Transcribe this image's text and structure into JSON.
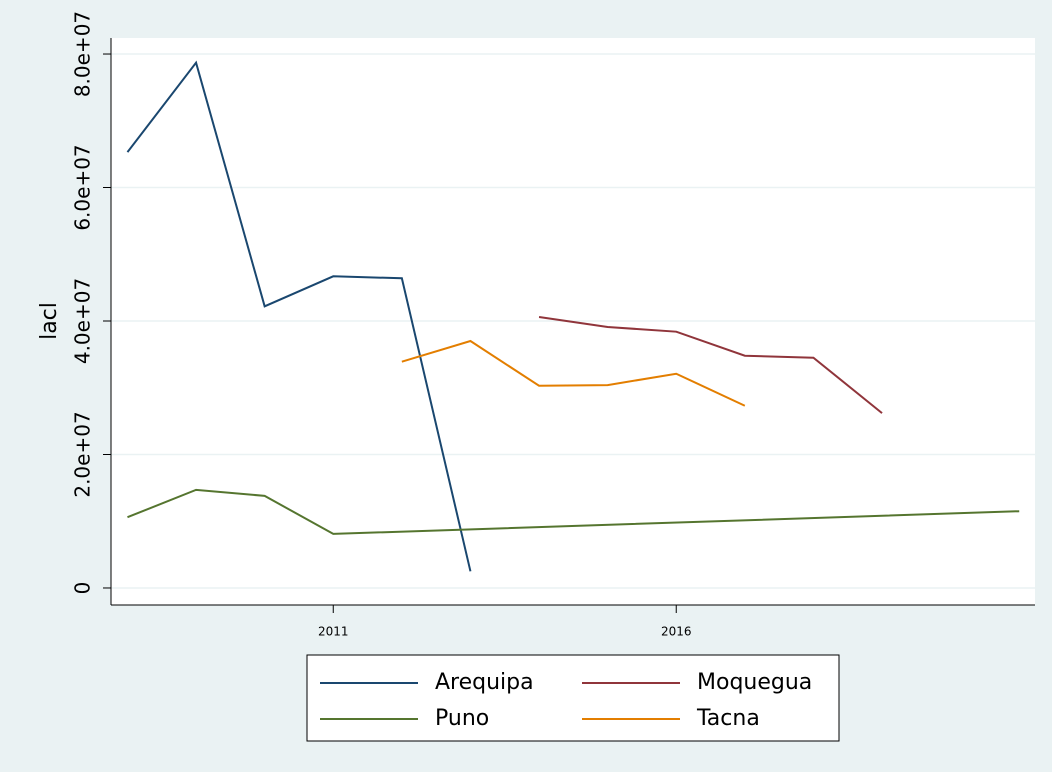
{
  "chart_data": {
    "type": "line",
    "y_label": "lacl",
    "xlim": [
      2007.76,
      2021.23
    ],
    "xticks": [
      2011,
      2016
    ],
    "ylim": [
      -2550000,
      82400000
    ],
    "yticks": [
      {
        "value": 0,
        "label": "0"
      },
      {
        "value": 20000000,
        "label": "2.0e+07"
      },
      {
        "value": 40000000,
        "label": "4.0e+07"
      },
      {
        "value": 60000000,
        "label": "6.0e+07"
      },
      {
        "value": 80000000,
        "label": "8.0e+07"
      }
    ],
    "grid": true,
    "series": [
      {
        "name": "Arequipa",
        "color": "#1a476f",
        "x": [
          2008,
          2009,
          2010,
          2011,
          2012,
          2013
        ],
        "values": [
          65300000,
          78700000,
          42200000,
          46700000,
          46400000,
          2500000
        ]
      },
      {
        "name": "Moquegua",
        "color": "#90353b",
        "x": [
          2014,
          2015,
          2016,
          2017,
          2018,
          2019
        ],
        "values": [
          40600000,
          39100000,
          38400000,
          34800000,
          34500000,
          26200000
        ]
      },
      {
        "name": "Puno",
        "color": "#55752f",
        "x": [
          2008,
          2009,
          2010,
          2011,
          2021
        ],
        "values": [
          10600000,
          14700000,
          13800000,
          8100000,
          11500000
        ]
      },
      {
        "name": "Tacna",
        "color": "#e37e00",
        "x": [
          2012,
          2013,
          2014,
          2015,
          2016,
          2017
        ],
        "values": [
          33900000,
          37000000,
          30300000,
          30400000,
          32100000,
          27300000
        ]
      }
    ]
  }
}
